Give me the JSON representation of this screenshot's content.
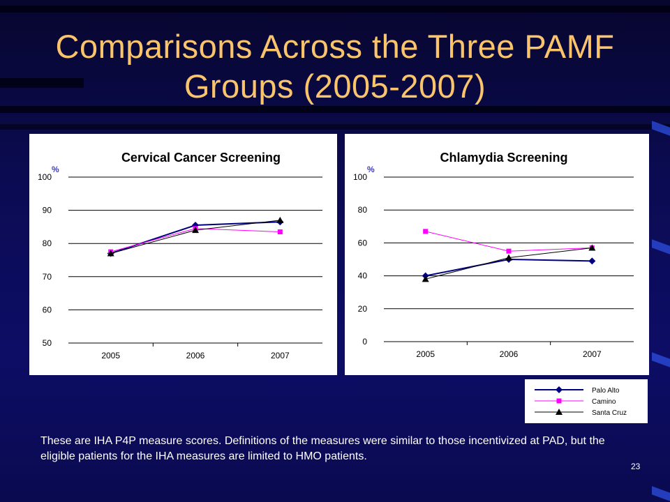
{
  "slide": {
    "title": "Comparisons Across the Three PAMF Groups (2005-2007)",
    "footnote": "These are IHA P4P measure scores. Definitions of the measures were similar to those incentivized at PAD, but the eligible patients for the IHA measures are limited to HMO patients.",
    "page_number": "23"
  },
  "colors": {
    "title": "#f9c46b",
    "palo_alto": "#000080",
    "camino": "#ff00ff",
    "santa_cruz": "#000000"
  },
  "legend": [
    "Palo Alto",
    "Camino",
    "Santa Cruz"
  ],
  "chart_data": [
    {
      "type": "line",
      "title": "Cervical Cancer Screening",
      "ylabel": "%",
      "categories": [
        "2005",
        "2006",
        "2007"
      ],
      "ylim": [
        50,
        100
      ],
      "yticks": [
        50,
        60,
        70,
        80,
        90,
        100
      ],
      "grid": true,
      "series": [
        {
          "name": "Palo Alto",
          "values": [
            77,
            85.5,
            86.5
          ]
        },
        {
          "name": "Camino",
          "values": [
            77.5,
            84.5,
            83.5
          ]
        },
        {
          "name": "Santa Cruz",
          "values": [
            77,
            84,
            87
          ]
        }
      ]
    },
    {
      "type": "line",
      "title": "Chlamydia Screening",
      "ylabel": "%",
      "categories": [
        "2005",
        "2006",
        "2007"
      ],
      "ylim": [
        0,
        100
      ],
      "yticks": [
        0,
        20,
        40,
        60,
        80,
        100
      ],
      "grid": true,
      "series": [
        {
          "name": "Palo Alto",
          "values": [
            40,
            50,
            49
          ]
        },
        {
          "name": "Camino",
          "values": [
            67,
            55,
            57
          ]
        },
        {
          "name": "Santa Cruz",
          "values": [
            38,
            51,
            57
          ]
        }
      ]
    }
  ]
}
